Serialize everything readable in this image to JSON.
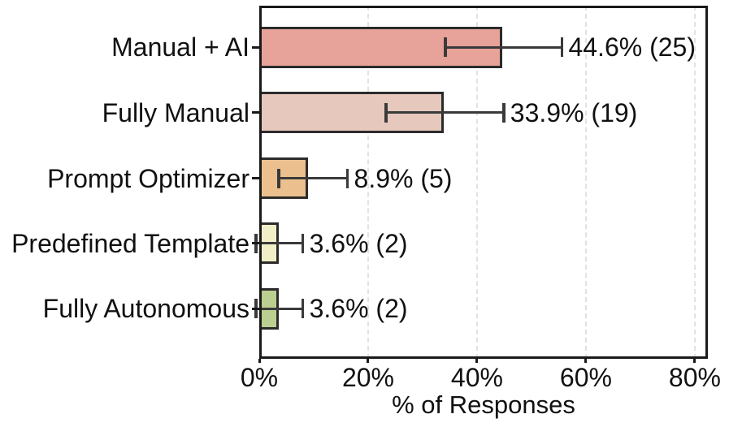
{
  "chart_data": {
    "type": "bar",
    "orientation": "horizontal",
    "title": "",
    "xlabel": "% of Responses",
    "ylabel": "",
    "categories": [
      "Manual + AI",
      "Fully Manual",
      "Prompt Optimizer",
      "Predefined Template",
      "Fully Autonomous"
    ],
    "values": [
      44.6,
      33.9,
      8.9,
      3.6,
      3.6
    ],
    "counts": [
      25,
      19,
      5,
      2,
      2
    ],
    "bar_labels": [
      "44.6% (25)",
      "33.9% (19)",
      "8.9% (5)",
      "3.6% (2)",
      "3.6% (2)"
    ],
    "error_low": [
      34.2,
      23.3,
      3.6,
      -0.6,
      -0.6
    ],
    "error_high": [
      55.6,
      44.9,
      16.2,
      8.0,
      8.0
    ],
    "bar_colors": [
      "#e7a29a",
      "#e6c8bd",
      "#ecc08e",
      "#f1efc8",
      "#bacf90"
    ],
    "bar_edge_color": "#2b2b2b",
    "error_bar_color": "#3a3a3a",
    "x_ticks": [
      {
        "value": 0,
        "label": "0%"
      },
      {
        "value": 20,
        "label": "20%"
      },
      {
        "value": 40,
        "label": "40%"
      },
      {
        "value": 60,
        "label": "60%"
      },
      {
        "value": 80,
        "label": "80%"
      }
    ],
    "xlim": [
      0,
      82.4
    ],
    "grid": {
      "axis": "x",
      "style": "dashed",
      "color": "#e2e2e2",
      "at_values": [
        20,
        40,
        60,
        80
      ]
    },
    "legend": "none",
    "background_color": "#ffffff",
    "text_color": "#111111"
  }
}
